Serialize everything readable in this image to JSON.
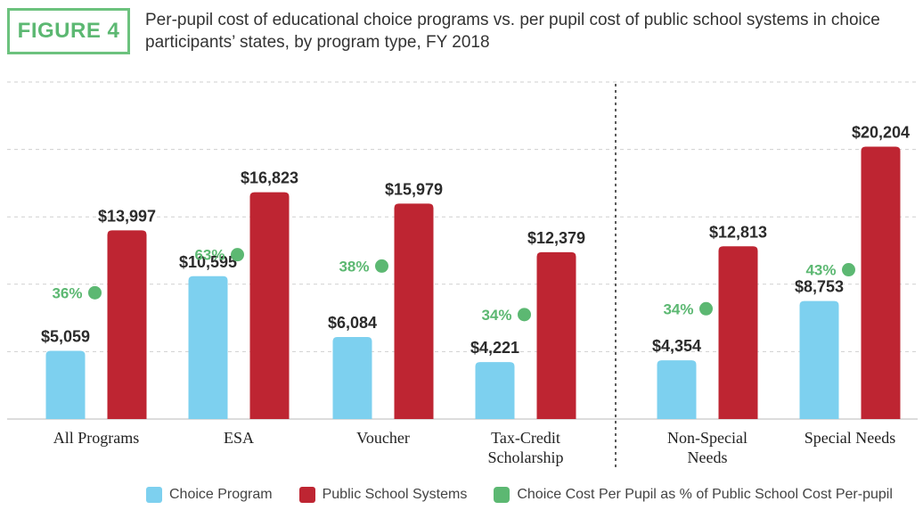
{
  "figure_label": "FIGURE 4",
  "title": "Per-pupil cost of educational choice programs vs. per pupil cost of public school systems in choice participants’ states, by program type, FY 2018",
  "colors": {
    "choice": "#7dd0ef",
    "public": "#be2532",
    "percent": "#5cb872",
    "badge": "#6cc27e"
  },
  "chart_data": {
    "type": "bar",
    "categories": [
      [
        "All Programs"
      ],
      [
        "ESA"
      ],
      [
        "Voucher"
      ],
      [
        "Tax-Credit",
        "Scholarship"
      ],
      [
        "Non-Special",
        "Needs"
      ],
      [
        "Special Needs"
      ]
    ],
    "series": [
      {
        "name": "Choice Program",
        "values": [
          5059,
          10595,
          6084,
          4221,
          4354,
          8753
        ],
        "labels": [
          "$5,059",
          "$10,595",
          "$6,084",
          "$4,221",
          "$4,354",
          "$8,753"
        ]
      },
      {
        "name": "Public School Systems",
        "values": [
          13997,
          16823,
          15979,
          12379,
          12813,
          20204
        ],
        "labels": [
          "$13,997",
          "$16,823",
          "$15,979",
          "$12,379",
          "$12,813",
          "$20,204"
        ]
      },
      {
        "name": "Choice Cost Per Pupil as % of Public School Cost Per-pupil",
        "values": [
          36,
          63,
          38,
          34,
          34,
          43
        ],
        "labels": [
          "36%",
          "63%",
          "38%",
          "34%",
          "34%",
          "43%"
        ]
      }
    ],
    "ylim": [
      0,
      25000
    ],
    "gridlines": [
      0,
      5000,
      10000,
      15000,
      20000,
      25000
    ],
    "grid": true,
    "group_divider_after_index": 3,
    "legend_position": "bottom"
  },
  "legend": [
    {
      "label": "Choice Program"
    },
    {
      "label": "Public School Systems"
    },
    {
      "label": "Choice Cost Per Pupil as % of Public School Cost Per-pupil"
    }
  ]
}
